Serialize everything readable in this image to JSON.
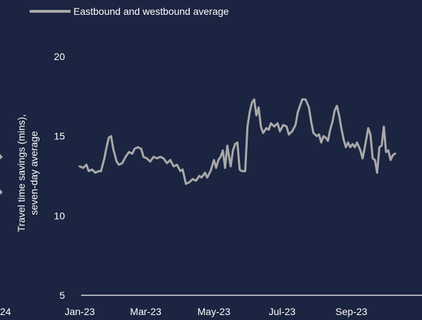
{
  "chart_data": {
    "type": "line",
    "title": "",
    "ylabel": [
      "Travel time savings (mins),",
      "seven-day average"
    ],
    "xlabel": "",
    "ylim": [
      5,
      20
    ],
    "yticks": [
      "20",
      "15",
      "10",
      "5"
    ],
    "xticks": [
      "Jan-23",
      "Mar-23",
      "May-23",
      "Jul-23",
      "Sep-23"
    ],
    "left_edge_fragment": "24",
    "legend_position": "top",
    "x_start": "2023-01-01",
    "series": [
      {
        "name": "Eastbound and westbound average",
        "color": "#a9a9a9",
        "points": [
          [
            "2023-01-01",
            13.1
          ],
          [
            "2023-01-04",
            13.0
          ],
          [
            "2023-01-07",
            13.2
          ],
          [
            "2023-01-09",
            12.8
          ],
          [
            "2023-01-12",
            12.9
          ],
          [
            "2023-01-15",
            12.7
          ],
          [
            "2023-01-18",
            12.8
          ],
          [
            "2023-01-20",
            12.8
          ],
          [
            "2023-01-23",
            13.6
          ],
          [
            "2023-01-25",
            14.3
          ],
          [
            "2023-01-27",
            14.9
          ],
          [
            "2023-01-29",
            15.0
          ],
          [
            "2023-01-31",
            14.2
          ],
          [
            "2023-02-03",
            13.4
          ],
          [
            "2023-02-05",
            13.2
          ],
          [
            "2023-02-08",
            13.3
          ],
          [
            "2023-02-11",
            13.7
          ],
          [
            "2023-02-14",
            14.0
          ],
          [
            "2023-02-17",
            13.9
          ],
          [
            "2023-02-19",
            14.2
          ],
          [
            "2023-02-22",
            14.3
          ],
          [
            "2023-02-25",
            14.2
          ],
          [
            "2023-02-27",
            13.7
          ],
          [
            "2023-03-02",
            13.6
          ],
          [
            "2023-03-05",
            13.4
          ],
          [
            "2023-03-08",
            13.7
          ],
          [
            "2023-03-11",
            13.6
          ],
          [
            "2023-03-14",
            13.7
          ],
          [
            "2023-03-17",
            13.6
          ],
          [
            "2023-03-20",
            13.3
          ],
          [
            "2023-03-23",
            13.5
          ],
          [
            "2023-03-26",
            13.1
          ],
          [
            "2023-03-29",
            13.2
          ],
          [
            "2023-04-01",
            12.8
          ],
          [
            "2023-04-03",
            12.9
          ],
          [
            "2023-04-06",
            12.0
          ],
          [
            "2023-04-09",
            12.1
          ],
          [
            "2023-04-12",
            12.3
          ],
          [
            "2023-04-15",
            12.2
          ],
          [
            "2023-04-18",
            12.5
          ],
          [
            "2023-04-20",
            12.4
          ],
          [
            "2023-04-23",
            12.7
          ],
          [
            "2023-04-25",
            12.4
          ],
          [
            "2023-04-28",
            12.8
          ],
          [
            "2023-05-01",
            13.5
          ],
          [
            "2023-05-03",
            13.0
          ],
          [
            "2023-05-05",
            13.5
          ],
          [
            "2023-05-07",
            13.7
          ],
          [
            "2023-05-09",
            14.1
          ],
          [
            "2023-05-11",
            13.0
          ],
          [
            "2023-05-13",
            14.4
          ],
          [
            "2023-05-16",
            13.1
          ],
          [
            "2023-05-18",
            14.1
          ],
          [
            "2023-05-20",
            14.5
          ],
          [
            "2023-05-22",
            14.6
          ],
          [
            "2023-05-24",
            12.9
          ],
          [
            "2023-05-26",
            12.8
          ],
          [
            "2023-05-29",
            12.8
          ],
          [
            "2023-05-31",
            15.6
          ],
          [
            "2023-06-02",
            16.5
          ],
          [
            "2023-06-04",
            17.1
          ],
          [
            "2023-06-06",
            17.3
          ],
          [
            "2023-06-08",
            16.3
          ],
          [
            "2023-06-10",
            16.8
          ],
          [
            "2023-06-12",
            15.6
          ],
          [
            "2023-06-14",
            15.2
          ],
          [
            "2023-06-17",
            15.5
          ],
          [
            "2023-06-19",
            15.4
          ],
          [
            "2023-06-21",
            15.8
          ],
          [
            "2023-06-24",
            15.6
          ],
          [
            "2023-06-27",
            15.8
          ],
          [
            "2023-06-29",
            15.3
          ],
          [
            "2023-07-02",
            15.7
          ],
          [
            "2023-07-05",
            15.6
          ],
          [
            "2023-07-07",
            15.1
          ],
          [
            "2023-07-10",
            15.3
          ],
          [
            "2023-07-13",
            15.7
          ],
          [
            "2023-07-15",
            16.5
          ],
          [
            "2023-07-17",
            16.9
          ],
          [
            "2023-07-19",
            17.3
          ],
          [
            "2023-07-22",
            17.3
          ],
          [
            "2023-07-25",
            16.8
          ],
          [
            "2023-07-27",
            15.9
          ],
          [
            "2023-07-29",
            15.2
          ],
          [
            "2023-08-01",
            15.0
          ],
          [
            "2023-08-03",
            15.1
          ],
          [
            "2023-08-05",
            14.6
          ],
          [
            "2023-08-07",
            15.0
          ],
          [
            "2023-08-09",
            14.9
          ],
          [
            "2023-08-11",
            14.7
          ],
          [
            "2023-08-13",
            15.4
          ],
          [
            "2023-08-15",
            15.9
          ],
          [
            "2023-08-17",
            16.6
          ],
          [
            "2023-08-19",
            16.9
          ],
          [
            "2023-08-21",
            16.3
          ],
          [
            "2023-08-23",
            15.5
          ],
          [
            "2023-08-25",
            14.8
          ],
          [
            "2023-08-27",
            14.3
          ],
          [
            "2023-08-29",
            14.6
          ],
          [
            "2023-08-31",
            14.3
          ],
          [
            "2023-09-02",
            14.5
          ],
          [
            "2023-09-04",
            14.3
          ],
          [
            "2023-09-06",
            14.6
          ],
          [
            "2023-09-09",
            14.1
          ],
          [
            "2023-09-11",
            13.6
          ],
          [
            "2023-09-13",
            14.3
          ],
          [
            "2023-09-16",
            15.5
          ],
          [
            "2023-09-18",
            15.1
          ],
          [
            "2023-09-20",
            13.6
          ],
          [
            "2023-09-22",
            13.5
          ],
          [
            "2023-09-24",
            12.7
          ],
          [
            "2023-09-26",
            14.3
          ],
          [
            "2023-09-28",
            14.4
          ],
          [
            "2023-09-30",
            15.6
          ],
          [
            "2023-10-02",
            14.0
          ],
          [
            "2023-10-04",
            14.1
          ],
          [
            "2023-10-06",
            13.5
          ],
          [
            "2023-10-08",
            13.8
          ],
          [
            "2023-10-10",
            13.9
          ]
        ]
      }
    ]
  }
}
